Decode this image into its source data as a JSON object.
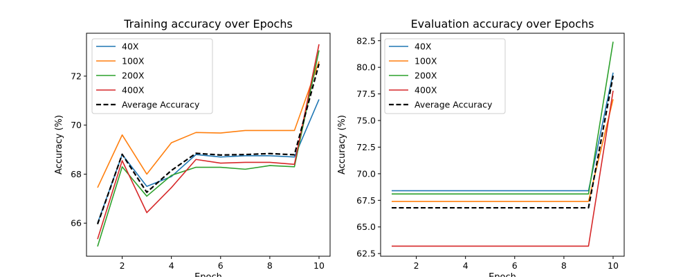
{
  "colors": {
    "40X": "#1f77b4",
    "100X": "#ff7f0e",
    "200X": "#2ca02c",
    "400X": "#d62728",
    "Average Accuracy": "#000000"
  },
  "chart_data": [
    {
      "type": "line",
      "title": "Training accuracy over Epochs",
      "xlabel": "Epoch",
      "ylabel": "Accuracy (%)",
      "x": [
        1,
        2,
        3,
        4,
        5,
        6,
        7,
        8,
        9,
        10
      ],
      "xlim": [
        0.55,
        10.45
      ],
      "ylim": [
        64.65,
        73.75
      ],
      "xticks": [
        2,
        4,
        6,
        8,
        10
      ],
      "yticks": [
        66,
        68,
        70,
        72
      ],
      "xtick_labels": [
        "2",
        "4",
        "6",
        "8",
        "10"
      ],
      "ytick_labels": [
        "66",
        "68",
        "70",
        "72"
      ],
      "grid": false,
      "legend_position": "top-left",
      "series": [
        {
          "name": "40X",
          "values": [
            66.0,
            68.8,
            67.5,
            67.9,
            68.8,
            68.7,
            68.75,
            68.75,
            68.7,
            71.05
          ]
        },
        {
          "name": "100X",
          "values": [
            67.45,
            69.6,
            68.0,
            69.28,
            69.7,
            69.68,
            69.78,
            69.78,
            69.78,
            72.6
          ]
        },
        {
          "name": "200X",
          "values": [
            65.05,
            68.3,
            67.1,
            67.95,
            68.28,
            68.28,
            68.2,
            68.35,
            68.3,
            73.05
          ]
        },
        {
          "name": "400X",
          "values": [
            65.35,
            68.55,
            66.43,
            67.45,
            68.6,
            68.45,
            68.48,
            68.48,
            68.4,
            73.3
          ]
        },
        {
          "name": "Average Accuracy",
          "dashed": true,
          "values": [
            65.96,
            68.81,
            67.26,
            68.15,
            68.85,
            68.78,
            68.8,
            68.84,
            68.79,
            72.5
          ]
        }
      ]
    },
    {
      "type": "line",
      "title": "Evaluation accuracy over Epochs",
      "xlabel": "Epoch",
      "ylabel": "Accuracy (%)",
      "x": [
        1,
        2,
        3,
        4,
        5,
        6,
        7,
        8,
        9,
        10
      ],
      "xlim": [
        0.55,
        10.45
      ],
      "ylim": [
        62.25,
        83.2
      ],
      "xticks": [
        2,
        4,
        6,
        8,
        10
      ],
      "yticks": [
        62.5,
        65.0,
        67.5,
        70.0,
        72.5,
        75.0,
        77.5,
        80.0,
        82.5
      ],
      "xtick_labels": [
        "2",
        "4",
        "6",
        "8",
        "10"
      ],
      "ytick_labels": [
        "62.5",
        "65.0",
        "67.5",
        "70.0",
        "72.5",
        "75.0",
        "77.5",
        "80.0",
        "82.5"
      ],
      "grid": false,
      "legend_position": "top-left",
      "series": [
        {
          "name": "40X",
          "values": [
            68.4,
            68.4,
            68.4,
            68.4,
            68.4,
            68.4,
            68.4,
            68.4,
            68.4,
            79.5
          ]
        },
        {
          "name": "100X",
          "values": [
            67.4,
            67.4,
            67.4,
            67.4,
            67.4,
            67.4,
            67.4,
            67.4,
            67.4,
            77.0
          ]
        },
        {
          "name": "200X",
          "values": [
            68.1,
            68.1,
            68.1,
            68.1,
            68.1,
            68.1,
            68.1,
            68.1,
            68.1,
            82.4
          ]
        },
        {
          "name": "400X",
          "values": [
            63.2,
            63.2,
            63.2,
            63.2,
            63.2,
            63.2,
            63.2,
            63.2,
            63.2,
            77.8
          ]
        },
        {
          "name": "Average Accuracy",
          "dashed": true,
          "values": [
            66.8,
            66.8,
            66.8,
            66.8,
            66.8,
            66.8,
            66.8,
            66.8,
            66.8,
            79.2
          ]
        }
      ]
    }
  ]
}
